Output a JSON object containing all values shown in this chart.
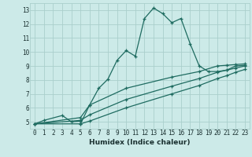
{
  "xlabel": "Humidex (Indice chaleur)",
  "bg_color": "#cceae8",
  "grid_color": "#aacfcc",
  "line_color": "#1e6b60",
  "xlim": [
    -0.5,
    23.5
  ],
  "ylim": [
    4.5,
    13.5
  ],
  "xticks": [
    0,
    1,
    2,
    3,
    4,
    5,
    6,
    7,
    8,
    9,
    10,
    11,
    12,
    13,
    14,
    15,
    16,
    17,
    18,
    19,
    20,
    21,
    22,
    23
  ],
  "yticks": [
    5,
    6,
    7,
    8,
    9,
    10,
    11,
    12,
    13
  ],
  "series_main": {
    "x": [
      0,
      1,
      3,
      4,
      5,
      5,
      6,
      7,
      8,
      9,
      10,
      11,
      12,
      13,
      14,
      15,
      16,
      17,
      18,
      19,
      20,
      21,
      22,
      23
    ],
    "y": [
      4.85,
      5.1,
      5.45,
      5.0,
      5.05,
      4.85,
      6.2,
      7.4,
      8.05,
      9.4,
      10.1,
      9.7,
      12.4,
      13.15,
      12.75,
      12.1,
      12.4,
      10.6,
      9.0,
      8.6,
      8.6,
      8.7,
      9.0,
      9.05
    ]
  },
  "series_lines": [
    {
      "x": [
        0,
        5,
        6,
        10,
        15,
        18,
        20,
        21,
        22,
        23
      ],
      "y": [
        4.85,
        4.85,
        5.05,
        6.0,
        7.0,
        7.6,
        8.1,
        8.3,
        8.55,
        8.75
      ]
    },
    {
      "x": [
        0,
        5,
        6,
        10,
        15,
        18,
        20,
        21,
        22,
        23
      ],
      "y": [
        4.85,
        5.1,
        5.5,
        6.6,
        7.55,
        8.1,
        8.55,
        8.7,
        8.85,
        9.0
      ]
    },
    {
      "x": [
        0,
        5,
        6,
        10,
        15,
        18,
        20,
        21,
        22,
        23
      ],
      "y": [
        4.85,
        5.3,
        6.2,
        7.4,
        8.2,
        8.6,
        9.0,
        9.05,
        9.1,
        9.15
      ]
    }
  ]
}
